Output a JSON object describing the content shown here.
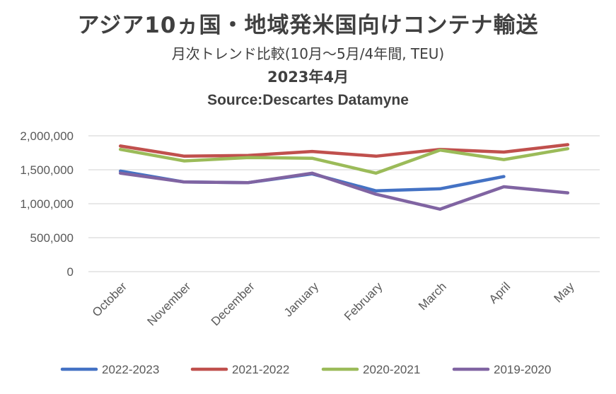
{
  "chart_data": {
    "type": "line",
    "title": "アジア10ヵ国・地域発米国向けコンテナ輸送",
    "subtitle": "月次トレンド比較(10月～5月/4年間, TEU)",
    "date_label": "2023年4月",
    "source": "Source:Descartes Datamyne",
    "categories": [
      "October",
      "November",
      "December",
      "January",
      "February",
      "March",
      "April",
      "May"
    ],
    "ylim": [
      0,
      2000000
    ],
    "yticks": [
      0,
      500000,
      1000000,
      1500000,
      2000000
    ],
    "ytick_labels": [
      "0",
      "500,000",
      "1,000,000",
      "1,500,000",
      "2,000,000"
    ],
    "grid": true,
    "legend_position": "bottom",
    "series": [
      {
        "name": "2022-2023",
        "color": "#4472C4",
        "values": [
          1480000,
          1320000,
          1310000,
          1440000,
          1190000,
          1220000,
          1400000,
          null
        ]
      },
      {
        "name": "2021-2022",
        "color": "#C0504D",
        "values": [
          1850000,
          1700000,
          1710000,
          1770000,
          1700000,
          1800000,
          1760000,
          1870000
        ]
      },
      {
        "name": "2020-2021",
        "color": "#9BBB59",
        "values": [
          1800000,
          1630000,
          1680000,
          1670000,
          1450000,
          1790000,
          1650000,
          1810000
        ]
      },
      {
        "name": "2019-2020",
        "color": "#8064A2",
        "values": [
          1450000,
          1320000,
          1310000,
          1450000,
          1140000,
          920000,
          1250000,
          1160000
        ]
      }
    ]
  }
}
